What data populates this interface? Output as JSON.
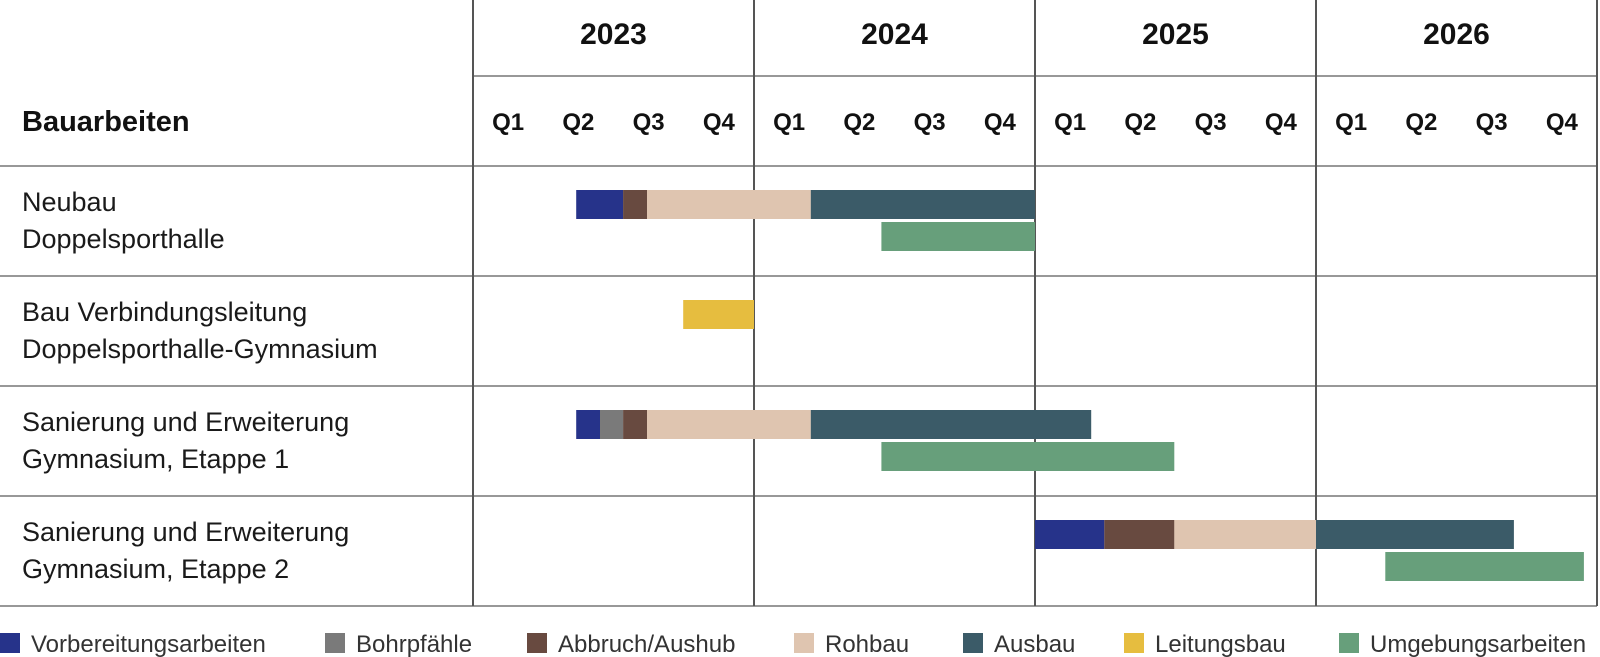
{
  "chart_data": {
    "type": "gantt",
    "header": "Bauarbeiten",
    "years": [
      {
        "label": "2023",
        "quarters": [
          "Q1",
          "Q2",
          "Q3",
          "Q4"
        ]
      },
      {
        "label": "2024",
        "quarters": [
          "Q1",
          "Q2",
          "Q3",
          "Q4"
        ]
      },
      {
        "label": "2025",
        "quarters": [
          "Q1",
          "Q2",
          "Q3",
          "Q4"
        ]
      },
      {
        "label": "2026",
        "quarters": [
          "Q1",
          "Q2",
          "Q3",
          "Q4"
        ]
      }
    ],
    "categories": [
      {
        "key": "vorbereitung",
        "label": "Vorbereitungsarbeiten",
        "color": "#26338a"
      },
      {
        "key": "bohrpfaehle",
        "label": "Bohrpfähle",
        "color": "#7a7a7a"
      },
      {
        "key": "abbruch",
        "label": "Abbruch/Aushub",
        "color": "#684a40"
      },
      {
        "key": "rohbau",
        "label": "Rohbau",
        "color": "#dfc5b0"
      },
      {
        "key": "ausbau",
        "label": "Ausbau",
        "color": "#3b5b68"
      },
      {
        "key": "leitungsbau",
        "label": "Leitungsbau",
        "color": "#e6bd3f"
      },
      {
        "key": "umgebung",
        "label": "Umgebungsarbeiten",
        "color": "#679f7b"
      }
    ],
    "tasks": [
      {
        "lines": [
          "Neubau",
          "Doppelsporthalle"
        ],
        "bars": [
          {
            "category": "vorbereitung",
            "start": "2023-05-15",
            "end": "2023-07-15",
            "lane": 0
          },
          {
            "category": "abbruch",
            "start": "2023-07-15",
            "end": "2023-08-15",
            "lane": 0
          },
          {
            "category": "rohbau",
            "start": "2023-08-15",
            "end": "2024-03-15",
            "lane": 0
          },
          {
            "category": "ausbau",
            "start": "2024-03-15",
            "end": "2025-01-01",
            "lane": 0
          },
          {
            "category": "umgebung",
            "start": "2024-06-15",
            "end": "2025-01-01",
            "lane": 1
          }
        ]
      },
      {
        "lines": [
          "Bau Verbindungsleitung",
          "Doppelsporthalle-Gymnasium"
        ],
        "bars": [
          {
            "category": "leitungsbau",
            "start": "2023-10-01",
            "end": "2024-01-01",
            "lane": 0
          }
        ]
      },
      {
        "lines": [
          "Sanierung und Erweiterung",
          "Gymnasium, Etappe 1"
        ],
        "bars": [
          {
            "category": "vorbereitung",
            "start": "2023-05-15",
            "end": "2023-06-15",
            "lane": 0
          },
          {
            "category": "bohrpfaehle",
            "start": "2023-06-15",
            "end": "2023-07-15",
            "lane": 0
          },
          {
            "category": "abbruch",
            "start": "2023-07-15",
            "end": "2023-08-15",
            "lane": 0
          },
          {
            "category": "rohbau",
            "start": "2023-08-15",
            "end": "2024-03-15",
            "lane": 0
          },
          {
            "category": "ausbau",
            "start": "2024-03-15",
            "end": "2025-03-15",
            "lane": 0
          },
          {
            "category": "umgebung",
            "start": "2024-06-15",
            "end": "2025-07-01",
            "lane": 1
          }
        ]
      },
      {
        "lines": [
          "Sanierung und Erweiterung",
          "Gymnasium, Etappe 2"
        ],
        "bars": [
          {
            "category": "vorbereitung",
            "start": "2025-01-01",
            "end": "2025-04-01",
            "lane": 0
          },
          {
            "category": "abbruch",
            "start": "2025-04-01",
            "end": "2025-07-01",
            "lane": 0
          },
          {
            "category": "rohbau",
            "start": "2025-07-01",
            "end": "2026-01-01",
            "lane": 0
          },
          {
            "category": "ausbau",
            "start": "2026-01-01",
            "end": "2026-09-15",
            "lane": 0
          },
          {
            "category": "umgebung",
            "start": "2026-04-01",
            "end": "2026-12-15",
            "lane": 1
          }
        ]
      }
    ]
  }
}
